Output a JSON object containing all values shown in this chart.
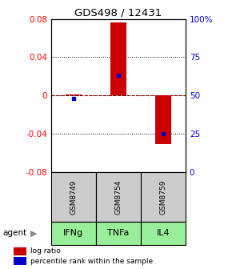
{
  "title": "GDS498 / 12431",
  "samples": [
    "GSM8749",
    "GSM8754",
    "GSM8759"
  ],
  "agents": [
    "IFNg",
    "TNFa",
    "IL4"
  ],
  "log_ratios": [
    0.001,
    0.076,
    -0.051
  ],
  "percentile_ranks": [
    48.0,
    63.0,
    25.0
  ],
  "ylim_left": [
    -0.08,
    0.08
  ],
  "ylim_right": [
    0,
    100
  ],
  "yticks_left": [
    -0.08,
    -0.04,
    0,
    0.04,
    0.08
  ],
  "yticks_right": [
    0,
    25,
    50,
    75,
    100
  ],
  "ytick_labels_right": [
    "0",
    "25",
    "50",
    "75",
    "100%"
  ],
  "bar_color": "#cc0000",
  "dot_color": "#0000cc",
  "sample_box_color": "#cccccc",
  "agent_box_color": "#99ee99",
  "agent_label": "agent",
  "legend_items": [
    "log ratio",
    "percentile rank within the sample"
  ],
  "bar_width": 0.35,
  "zero_line_color": "#cc0000",
  "background_color": "#ffffff"
}
